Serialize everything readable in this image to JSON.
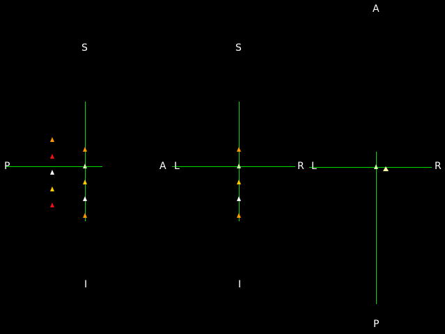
{
  "views": {
    "sagittal": {
      "label_top": "S",
      "label_bottom": "I",
      "label_left": "P"
    },
    "coronal": {
      "label_top": "S",
      "label_bottom": "I",
      "label_left_outer": "A",
      "label_left_inner": "L",
      "label_right": "R"
    },
    "axial": {
      "label_top": "A",
      "label_bottom": "P",
      "label_left": "L",
      "label_right": "R"
    }
  },
  "colors": {
    "background": "#000000",
    "crosshair": "#00dd00",
    "text": "#ffffff",
    "marker_orange": "#ff9900",
    "marker_red": "#ee1111",
    "marker_yellow": "#ffcc00",
    "marker_white": "#ffffff",
    "marker_lightgreen": "#ccffaa"
  }
}
